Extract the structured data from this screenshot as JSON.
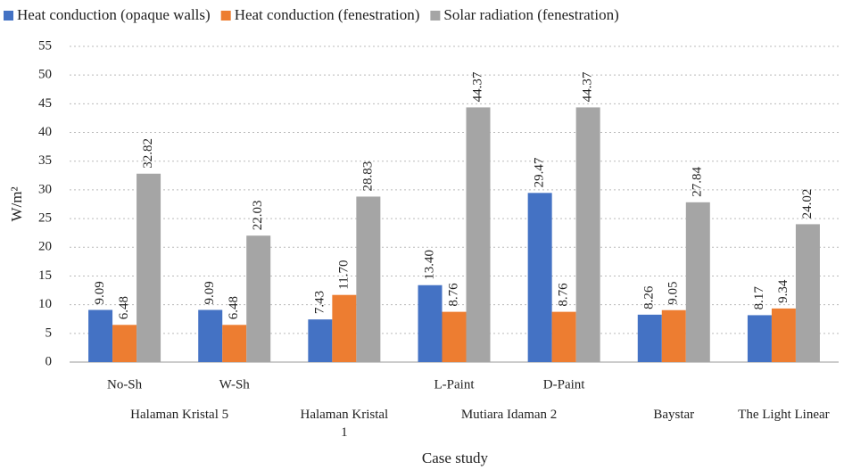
{
  "chart_data": {
    "type": "bar",
    "x_label": "Case study",
    "y_label": "W/m²",
    "categories": [
      "No-Sh",
      "W-Sh",
      null,
      "L-Paint",
      "D-Paint",
      null,
      null
    ],
    "group_labels": [
      "Halaman Kristal 5",
      null,
      "Halaman Kristal 1",
      "Mutiara Idaman 2",
      null,
      "Baystar",
      "The Light Linear"
    ],
    "series": [
      {
        "name": "Heat conduction (opaque walls)",
        "color": "#4472c4",
        "values": [
          9.09,
          9.09,
          7.43,
          13.4,
          29.47,
          8.26,
          8.17
        ],
        "value_labels": [
          "9.09",
          "9.09",
          "7.43",
          "13.40",
          "29.47",
          "8.26",
          "8.17"
        ]
      },
      {
        "name": "Heat conduction (fenestration)",
        "color": "#ed7d31",
        "values": [
          6.48,
          6.48,
          11.7,
          8.76,
          8.76,
          9.05,
          9.34
        ],
        "value_labels": [
          "6.48",
          "6.48",
          "11.70",
          "8.76",
          "8.76",
          "9.05",
          "9.34"
        ]
      },
      {
        "name": "Solar radiation (fenestration)",
        "color": "#a5a5a5",
        "values": [
          32.82,
          22.03,
          28.83,
          44.37,
          44.37,
          27.84,
          24.02
        ],
        "value_labels": [
          "32.82",
          "22.03",
          "28.83",
          "44.37",
          "44.37",
          "27.84",
          "24.02"
        ]
      }
    ],
    "ylim": [
      0,
      55
    ],
    "yticks": [
      0,
      5,
      10,
      15,
      20,
      25,
      30,
      35,
      40,
      45,
      50,
      55
    ],
    "grid": true,
    "legend": "top"
  }
}
